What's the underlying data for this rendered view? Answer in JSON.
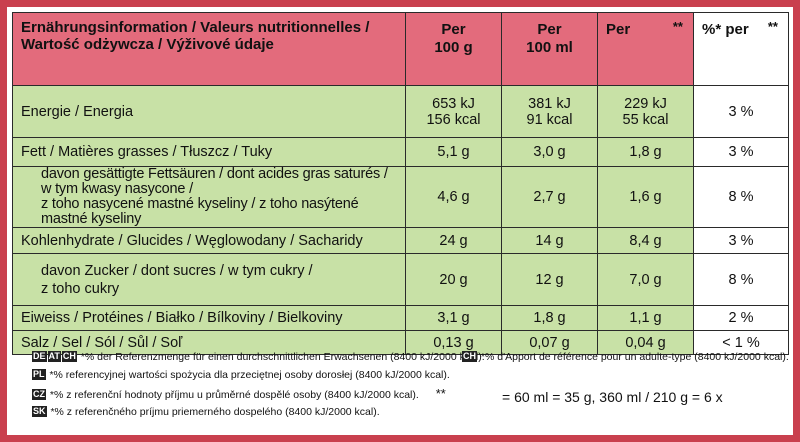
{
  "header": {
    "label_line1": "Ernährungsinformation / Valeurs nutritionnelles /",
    "label_line2": "Wartość odżywcza / Výživové údaje",
    "per100g_l1": "Per",
    "per100g_l2": "100 g",
    "per100ml_l1": "Per",
    "per100ml_l2": "100 ml",
    "per_portion": "Per",
    "per_portion_mark": "**",
    "pct_label": "%* per",
    "pct_mark": "**"
  },
  "rows": [
    {
      "label": "Energie / Energia",
      "v1a": "653 kJ",
      "v1b": "156 kcal",
      "v2a": "381 kJ",
      "v2b": "91 kcal",
      "v3a": "229 kJ",
      "v3b": "55 kcal",
      "pct": "3 %"
    },
    {
      "label": "Fett / Matières grasses / Tłuszcz / Tuky",
      "v1": "5,1 g",
      "v2": "3,0 g",
      "v3": "1,8 g",
      "pct": "3 %"
    },
    {
      "label_l1": "davon gesättigte Fettsäuren / dont acides gras saturés / w tym kwasy nasycone /",
      "label_l2": "z toho nasycené mastné kyseliny / z toho nasýtené mastné kyseliny",
      "v1": "4,6 g",
      "v2": "2,7 g",
      "v3": "1,6 g",
      "pct": "8 %"
    },
    {
      "label": "Kohlenhydrate / Glucides / Węglowodany / Sacharidy",
      "v1": "24 g",
      "v2": "14 g",
      "v3": "8,4 g",
      "pct": "3 %"
    },
    {
      "label_l1": "davon Zucker / dont sucres / w tym cukry /",
      "label_l2": "z toho cukry",
      "v1": "20 g",
      "v2": "12 g",
      "v3": "7,0 g",
      "pct": "8 %"
    },
    {
      "label": "Eiweiss / Protéines / Białko / Bílkoviny / Bielkoviny",
      "v1": "3,1 g",
      "v2": "1,8 g",
      "v3": "1,1 g",
      "pct": "2 %"
    },
    {
      "label": "Salz / Sel / Sól / Sůl / Soľ",
      "v1": "0,13 g",
      "v2": "0,07 g",
      "v3": "0,04 g",
      "pct": "< 1 %"
    }
  ],
  "footnotes": {
    "de_codes": [
      "DE",
      "AT",
      "CH"
    ],
    "de_text": "*% der Referenzmenge für einen durchschnittlichen Erwachsenen (8400 kJ/2000 kcal).",
    "ch_code": "CH",
    "ch_text": "*% d'Apport de référence pour un adulte-type (8400 kJ/2000 kcal).",
    "pl_code": "PL",
    "pl_text": "*% referencyjnej wartości spożycia dla przeciętnej osoby dorosłej (8400 kJ/2000 kcal).",
    "cz_code": "CZ",
    "cz_text": "*% z referenční hodnoty příjmu u průměrné dospělé osoby (8400 kJ/2000 kcal).",
    "cz_mark": "**",
    "sk_code": "SK",
    "sk_text": "*% z referenčného príjmu priemerného dospelého (8400 kJ/2000 kcal).",
    "portion": "= 60 ml = 35 g, 360 ml / 210 g = 6 x"
  }
}
